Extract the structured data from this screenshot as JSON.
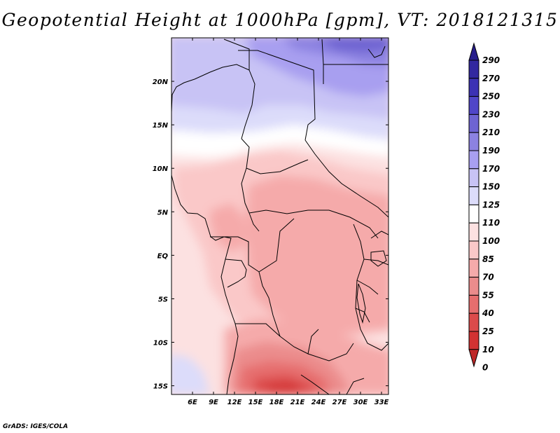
{
  "title": "Geopotential Height at 1000hPa [gpm], VT: 2018121315",
  "credit": "GrADS: IGES/COLA",
  "map": {
    "lon_range": [
      3,
      34
    ],
    "lat_range": [
      -16,
      25
    ],
    "lon_ticks": [
      "6E",
      "9E",
      "12E",
      "15E",
      "18E",
      "21E",
      "24E",
      "27E",
      "30E",
      "33E"
    ],
    "lat_ticks": [
      "20N",
      "15N",
      "10N",
      "5N",
      "EQ",
      "5S",
      "10S",
      "15S"
    ]
  },
  "colorbar": {
    "labels": [
      "290",
      "270",
      "250",
      "230",
      "210",
      "190",
      "170",
      "150",
      "125",
      "110",
      "100",
      "85",
      "70",
      "55",
      "40",
      "25",
      "10",
      "0"
    ],
    "colors": [
      "#281e8c",
      "#3228a0",
      "#3c32b4",
      "#5046c8",
      "#6e64d2",
      "#8c82e1",
      "#a89ff0",
      "#c8c3f5",
      "#dcdcfa",
      "#ffffff",
      "#fce1e1",
      "#fac8c8",
      "#f5aaaa",
      "#eb8c8c",
      "#e66e6e",
      "#dc4b4b",
      "#d23232",
      "#be2828"
    ]
  }
}
